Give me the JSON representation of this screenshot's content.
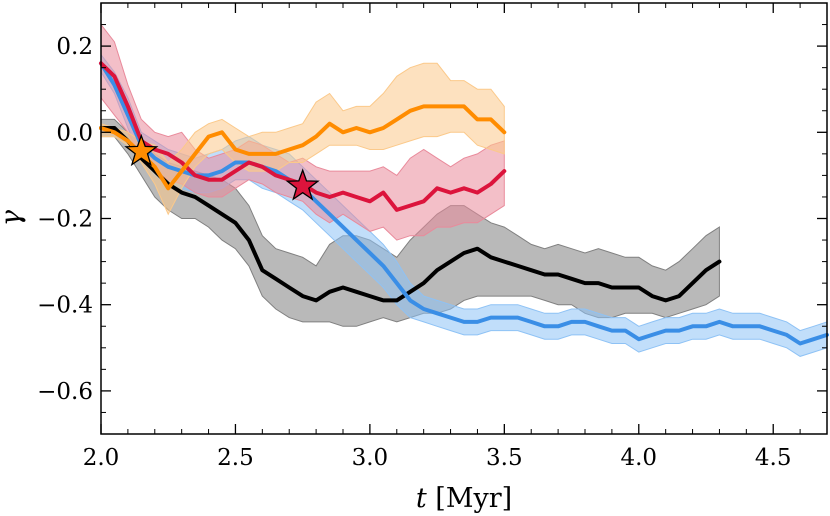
{
  "chart_data": {
    "type": "line",
    "xlabel_var": "t",
    "xlabel_unit": "[Myr]",
    "ylabel": "γ",
    "xlim": [
      2.0,
      4.7
    ],
    "ylim": [
      -0.7,
      0.3
    ],
    "xticks": [
      2.0,
      2.5,
      3.0,
      3.5,
      4.0,
      4.5
    ],
    "xtick_labels": [
      "2.0",
      "2.5",
      "3.0",
      "3.5",
      "4.0",
      "4.5"
    ],
    "yticks": [
      0.2,
      0.0,
      -0.2,
      -0.4,
      -0.6
    ],
    "ytick_labels": [
      "0.2",
      "0.0",
      "−0.2",
      "−0.4",
      "−0.6"
    ],
    "grid": false,
    "series": [
      {
        "color": "#000000",
        "band_color": "#808080",
        "x": [
          2.0,
          2.05,
          2.1,
          2.15,
          2.2,
          2.25,
          2.3,
          2.35,
          2.4,
          2.45,
          2.5,
          2.55,
          2.6,
          2.65,
          2.7,
          2.75,
          2.8,
          2.85,
          2.9,
          2.95,
          3.0,
          3.05,
          3.1,
          3.15,
          3.2,
          3.25,
          3.3,
          3.35,
          3.4,
          3.45,
          3.5,
          3.55,
          3.6,
          3.65,
          3.7,
          3.75,
          3.8,
          3.85,
          3.9,
          3.95,
          4.0,
          4.05,
          4.1,
          4.15,
          4.2,
          4.25,
          4.3
        ],
        "y": [
          0.01,
          0.01,
          -0.02,
          -0.06,
          -0.09,
          -0.12,
          -0.14,
          -0.15,
          -0.17,
          -0.19,
          -0.21,
          -0.25,
          -0.32,
          -0.34,
          -0.36,
          -0.38,
          -0.39,
          -0.37,
          -0.36,
          -0.37,
          -0.38,
          -0.39,
          -0.39,
          -0.37,
          -0.35,
          -0.32,
          -0.3,
          -0.28,
          -0.27,
          -0.29,
          -0.3,
          -0.31,
          -0.32,
          -0.33,
          -0.33,
          -0.34,
          -0.35,
          -0.35,
          -0.36,
          -0.36,
          -0.36,
          -0.38,
          -0.39,
          -0.38,
          -0.35,
          -0.32,
          -0.3
        ],
        "upper": [
          0.03,
          0.03,
          0.0,
          -0.02,
          -0.05,
          -0.07,
          -0.08,
          -0.09,
          -0.1,
          -0.11,
          -0.13,
          -0.17,
          -0.24,
          -0.27,
          -0.28,
          -0.29,
          -0.31,
          -0.26,
          -0.24,
          -0.24,
          -0.25,
          -0.27,
          -0.29,
          -0.25,
          -0.22,
          -0.19,
          -0.17,
          -0.17,
          -0.19,
          -0.21,
          -0.22,
          -0.24,
          -0.26,
          -0.27,
          -0.26,
          -0.27,
          -0.28,
          -0.27,
          -0.28,
          -0.29,
          -0.29,
          -0.31,
          -0.32,
          -0.3,
          -0.27,
          -0.24,
          -0.22
        ],
        "lower": [
          -0.01,
          -0.01,
          -0.05,
          -0.1,
          -0.15,
          -0.18,
          -0.2,
          -0.2,
          -0.22,
          -0.25,
          -0.27,
          -0.31,
          -0.38,
          -0.41,
          -0.43,
          -0.44,
          -0.44,
          -0.44,
          -0.45,
          -0.45,
          -0.44,
          -0.43,
          -0.44,
          -0.43,
          -0.42,
          -0.42,
          -0.41,
          -0.39,
          -0.38,
          -0.38,
          -0.38,
          -0.38,
          -0.38,
          -0.39,
          -0.4,
          -0.4,
          -0.42,
          -0.43,
          -0.43,
          -0.42,
          -0.42,
          -0.42,
          -0.43,
          -0.42,
          -0.41,
          -0.4,
          -0.38
        ]
      },
      {
        "color": "#3a8ee6",
        "band_color": "#8ec2f5",
        "x": [
          2.0,
          2.05,
          2.1,
          2.15,
          2.2,
          2.25,
          2.3,
          2.35,
          2.4,
          2.45,
          2.5,
          2.55,
          2.6,
          2.65,
          2.7,
          2.75,
          2.8,
          2.85,
          2.9,
          2.95,
          3.0,
          3.05,
          3.1,
          3.15,
          3.2,
          3.25,
          3.3,
          3.35,
          3.4,
          3.45,
          3.5,
          3.55,
          3.6,
          3.65,
          3.7,
          3.75,
          3.8,
          3.85,
          3.9,
          3.95,
          4.0,
          4.05,
          4.1,
          4.15,
          4.2,
          4.25,
          4.3,
          4.35,
          4.4,
          4.45,
          4.5,
          4.55,
          4.6,
          4.65,
          4.7
        ],
        "y": [
          0.16,
          0.11,
          0.04,
          -0.03,
          -0.06,
          -0.08,
          -0.09,
          -0.1,
          -0.1,
          -0.09,
          -0.07,
          -0.07,
          -0.08,
          -0.09,
          -0.11,
          -0.13,
          -0.16,
          -0.19,
          -0.22,
          -0.25,
          -0.28,
          -0.31,
          -0.35,
          -0.39,
          -0.41,
          -0.42,
          -0.43,
          -0.44,
          -0.44,
          -0.43,
          -0.43,
          -0.43,
          -0.44,
          -0.45,
          -0.45,
          -0.44,
          -0.44,
          -0.45,
          -0.46,
          -0.46,
          -0.48,
          -0.47,
          -0.46,
          -0.46,
          -0.45,
          -0.45,
          -0.44,
          -0.45,
          -0.45,
          -0.45,
          -0.46,
          -0.47,
          -0.49,
          -0.48,
          -0.47
        ],
        "upper": [
          0.18,
          0.14,
          0.08,
          0.0,
          -0.02,
          -0.04,
          -0.05,
          -0.06,
          -0.05,
          -0.04,
          -0.02,
          -0.01,
          -0.03,
          -0.04,
          -0.05,
          -0.08,
          -0.11,
          -0.14,
          -0.17,
          -0.2,
          -0.23,
          -0.26,
          -0.3,
          -0.35,
          -0.38,
          -0.39,
          -0.4,
          -0.41,
          -0.41,
          -0.4,
          -0.4,
          -0.4,
          -0.41,
          -0.42,
          -0.42,
          -0.41,
          -0.41,
          -0.42,
          -0.43,
          -0.43,
          -0.45,
          -0.44,
          -0.43,
          -0.43,
          -0.42,
          -0.42,
          -0.41,
          -0.42,
          -0.42,
          -0.42,
          -0.43,
          -0.44,
          -0.46,
          -0.45,
          -0.44
        ],
        "lower": [
          0.14,
          0.09,
          0.01,
          -0.06,
          -0.1,
          -0.12,
          -0.13,
          -0.14,
          -0.14,
          -0.13,
          -0.11,
          -0.11,
          -0.13,
          -0.14,
          -0.16,
          -0.18,
          -0.21,
          -0.24,
          -0.27,
          -0.3,
          -0.33,
          -0.36,
          -0.4,
          -0.43,
          -0.44,
          -0.45,
          -0.46,
          -0.47,
          -0.47,
          -0.46,
          -0.46,
          -0.46,
          -0.47,
          -0.48,
          -0.48,
          -0.47,
          -0.47,
          -0.48,
          -0.49,
          -0.49,
          -0.51,
          -0.5,
          -0.49,
          -0.49,
          -0.48,
          -0.48,
          -0.47,
          -0.48,
          -0.48,
          -0.48,
          -0.49,
          -0.5,
          -0.52,
          -0.51,
          -0.5
        ]
      },
      {
        "color": "#dc143c",
        "band_color": "#e98a9b",
        "x": [
          2.0,
          2.05,
          2.1,
          2.15,
          2.2,
          2.25,
          2.3,
          2.35,
          2.4,
          2.45,
          2.5,
          2.55,
          2.6,
          2.65,
          2.7,
          2.75,
          2.8,
          2.85,
          2.9,
          2.95,
          3.0,
          3.05,
          3.1,
          3.15,
          3.2,
          3.25,
          3.3,
          3.35,
          3.4,
          3.45,
          3.5
        ],
        "y": [
          0.16,
          0.13,
          0.06,
          -0.02,
          -0.04,
          -0.05,
          -0.07,
          -0.1,
          -0.11,
          -0.11,
          -0.09,
          -0.07,
          -0.08,
          -0.1,
          -0.11,
          -0.12,
          -0.14,
          -0.15,
          -0.14,
          -0.15,
          -0.16,
          -0.14,
          -0.18,
          -0.17,
          -0.16,
          -0.13,
          -0.14,
          -0.13,
          -0.14,
          -0.12,
          -0.09
        ],
        "upper": [
          0.25,
          0.21,
          0.11,
          0.03,
          0.0,
          -0.01,
          0.0,
          -0.04,
          -0.06,
          -0.05,
          -0.04,
          -0.02,
          -0.03,
          -0.05,
          -0.07,
          -0.06,
          -0.08,
          -0.09,
          -0.09,
          -0.09,
          -0.09,
          -0.08,
          -0.1,
          -0.06,
          -0.04,
          -0.06,
          -0.08,
          -0.06,
          -0.05,
          -0.03,
          -0.02
        ],
        "lower": [
          0.08,
          0.04,
          0.0,
          -0.06,
          -0.09,
          -0.11,
          -0.12,
          -0.14,
          -0.15,
          -0.15,
          -0.13,
          -0.11,
          -0.12,
          -0.14,
          -0.15,
          -0.16,
          -0.19,
          -0.21,
          -0.19,
          -0.21,
          -0.23,
          -0.22,
          -0.25,
          -0.24,
          -0.24,
          -0.22,
          -0.22,
          -0.21,
          -0.21,
          -0.19,
          -0.17
        ]
      },
      {
        "color": "#ff8c00",
        "band_color": "#fbc98a",
        "x": [
          2.0,
          2.05,
          2.1,
          2.15,
          2.2,
          2.25,
          2.3,
          2.35,
          2.4,
          2.45,
          2.5,
          2.55,
          2.6,
          2.65,
          2.7,
          2.75,
          2.8,
          2.85,
          2.9,
          2.95,
          3.0,
          3.05,
          3.1,
          3.15,
          3.2,
          3.25,
          3.3,
          3.35,
          3.4,
          3.45,
          3.5
        ],
        "y": [
          0.01,
          0.0,
          -0.02,
          -0.05,
          -0.08,
          -0.13,
          -0.09,
          -0.05,
          -0.01,
          0.0,
          -0.04,
          -0.05,
          -0.05,
          -0.05,
          -0.04,
          -0.03,
          -0.01,
          0.02,
          0.0,
          0.01,
          0.0,
          0.01,
          0.03,
          0.05,
          0.06,
          0.06,
          0.06,
          0.06,
          0.03,
          0.03,
          0.0
        ],
        "upper": [
          0.02,
          0.01,
          0.0,
          -0.02,
          -0.03,
          -0.07,
          -0.04,
          0.0,
          0.02,
          0.03,
          0.01,
          -0.01,
          0.0,
          0.0,
          0.01,
          0.02,
          0.07,
          0.09,
          0.05,
          0.06,
          0.06,
          0.09,
          0.13,
          0.15,
          0.16,
          0.16,
          0.12,
          0.12,
          0.1,
          0.1,
          0.06
        ],
        "lower": [
          -0.01,
          -0.01,
          -0.03,
          -0.07,
          -0.12,
          -0.19,
          -0.13,
          -0.08,
          -0.05,
          -0.04,
          -0.07,
          -0.09,
          -0.09,
          -0.09,
          -0.07,
          -0.07,
          -0.05,
          -0.03,
          -0.03,
          -0.03,
          -0.04,
          -0.04,
          -0.03,
          -0.02,
          -0.01,
          -0.01,
          0.0,
          0.0,
          -0.03,
          -0.04,
          -0.05
        ]
      }
    ],
    "markers": [
      {
        "shape": "star",
        "x": 2.15,
        "y": -0.045,
        "color": "#ff8c00"
      },
      {
        "shape": "star",
        "x": 2.75,
        "y": -0.125,
        "color": "#dc143c"
      }
    ]
  }
}
